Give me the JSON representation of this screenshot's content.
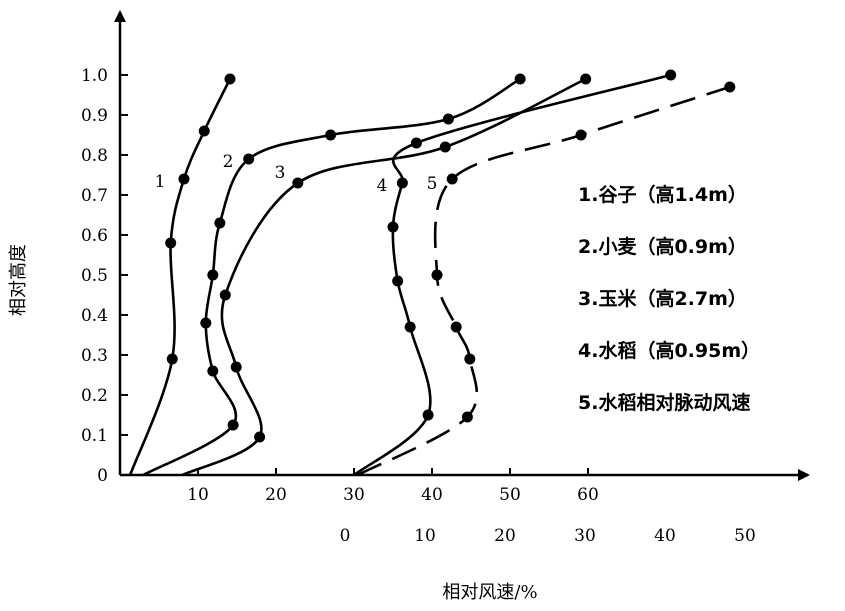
{
  "chart_data": {
    "type": "line",
    "title": "",
    "xlabel": "相对风速/%",
    "ylabel": "相对高度",
    "xlim": [
      0,
      88
    ],
    "ylim": [
      0,
      1.0
    ],
    "grid": false,
    "legend_position": "right",
    "x_ticks": [
      "10",
      "20",
      "30",
      "40",
      "50",
      "60"
    ],
    "x_tick_values": [
      10,
      20,
      30,
      40,
      50,
      60
    ],
    "x2_ticks": [
      "0",
      "10",
      "20",
      "30",
      "40",
      "50"
    ],
    "x2_tick_values": [
      0,
      10,
      20,
      30,
      40,
      50
    ],
    "y_ticks": [
      "0",
      "0.1",
      "0.2",
      "0.3",
      "0.4",
      "0.5",
      "0.6",
      "0.7",
      "0.8",
      "0.9",
      "1.0"
    ],
    "y_tick_values": [
      0,
      0.1,
      0.2,
      0.3,
      0.4,
      0.5,
      0.6,
      0.7,
      0.8,
      0.9,
      1.0
    ],
    "series": [
      {
        "name": "1.谷子（高1.4m）",
        "label": "1",
        "axis": "x",
        "dashed": false,
        "start": [
          1.3,
          0
        ],
        "points": [
          [
            6.7,
            0.29
          ],
          [
            6.5,
            0.58
          ],
          [
            8.2,
            0.74
          ],
          [
            10.8,
            0.86
          ],
          [
            14.1,
            0.99
          ]
        ]
      },
      {
        "name": "2.小麦（高0.9m）",
        "label": "2",
        "axis": "x",
        "dashed": false,
        "start": [
          3,
          0
        ],
        "points": [
          [
            14.5,
            0.125
          ],
          [
            11.9,
            0.26
          ],
          [
            11.0,
            0.38
          ],
          [
            11.9,
            0.5
          ],
          [
            12.8,
            0.63
          ],
          [
            16.5,
            0.79
          ],
          [
            27.0,
            0.85
          ],
          [
            42.1,
            0.89
          ],
          [
            51.3,
            0.99
          ]
        ]
      },
      {
        "name": "3.玉米（高2.7m）",
        "label": "3",
        "axis": "x",
        "dashed": false,
        "start": [
          8,
          0
        ],
        "points": [
          [
            17.9,
            0.095
          ],
          [
            14.9,
            0.27
          ],
          [
            13.5,
            0.45
          ],
          [
            22.8,
            0.73
          ],
          [
            41.7,
            0.82
          ],
          [
            59.7,
            0.99
          ]
        ]
      },
      {
        "name": "4.水稻（高0.95m）",
        "label": "4",
        "axis": "x",
        "dashed": false,
        "start": [
          30,
          0
        ],
        "points": [
          [
            39.5,
            0.15
          ],
          [
            37.2,
            0.37
          ],
          [
            35.6,
            0.485
          ],
          [
            35.0,
            0.62
          ],
          [
            36.2,
            0.73
          ],
          [
            38.0,
            0.83
          ],
          [
            70.6,
            1.0
          ]
        ]
      },
      {
        "name": "5.水稻相对脉动风速",
        "label": "5",
        "axis": "x2",
        "dashed": true,
        "start": [
          1.6,
          0
        ],
        "points": [
          [
            15.3,
            0.145
          ],
          [
            15.6,
            0.29
          ],
          [
            13.9,
            0.37
          ],
          [
            11.5,
            0.5
          ],
          [
            13.4,
            0.74
          ],
          [
            29.5,
            0.85
          ],
          [
            48.1,
            0.97
          ]
        ]
      }
    ]
  }
}
